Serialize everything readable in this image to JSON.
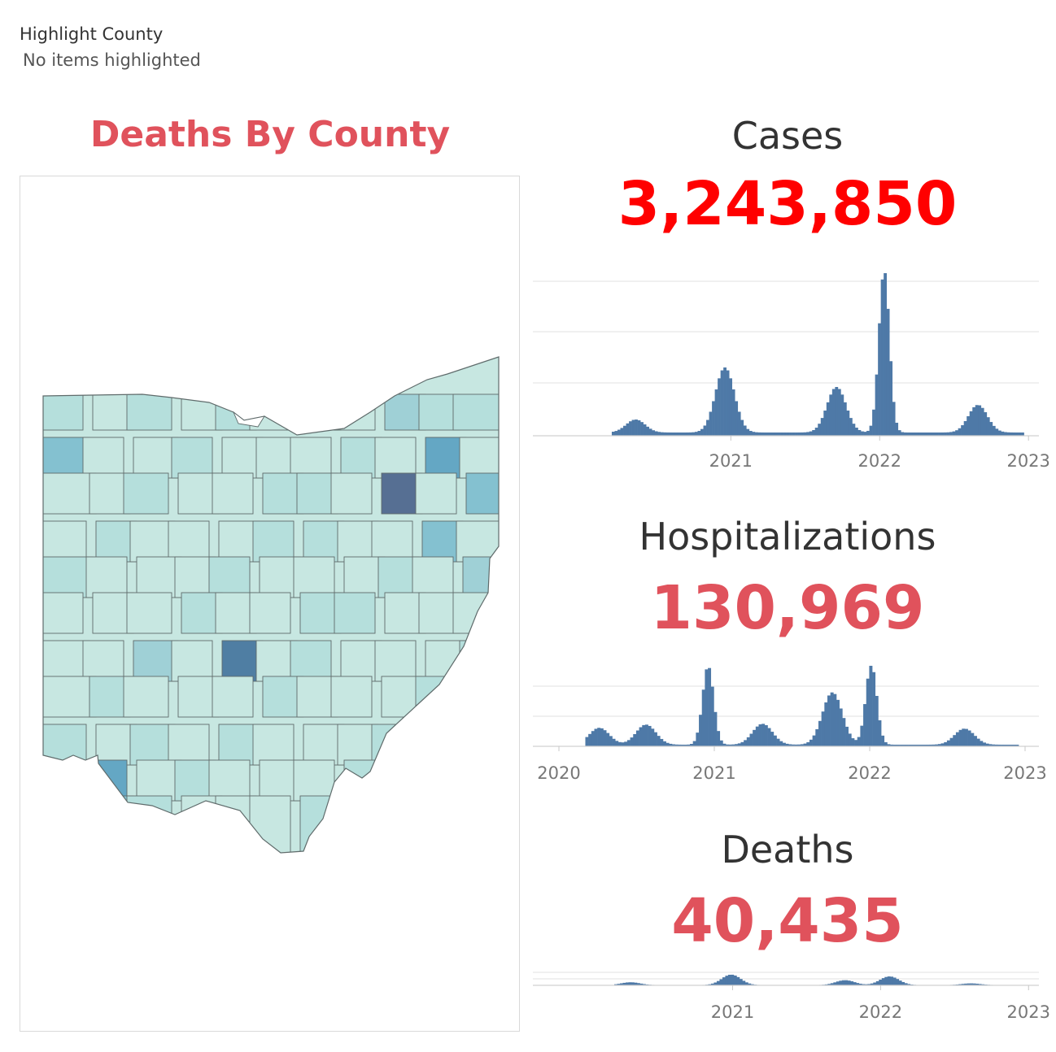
{
  "filter": {
    "title": "Highlight County",
    "value": "No items highlighted"
  },
  "map": {
    "title": "Deaths By County",
    "title_color": "#e0525c",
    "palette": [
      "#c7e7e1",
      "#b5dfdc",
      "#9fd0d6",
      "#84c1d0",
      "#64a7c4",
      "#4f7ea3",
      "#566f93"
    ]
  },
  "kpis": [
    {
      "key": "cases",
      "title": "Cases",
      "value": "3,243,850",
      "value_color": "#ff0000",
      "x_ticks": [
        "2021",
        "2022",
        "2023"
      ]
    },
    {
      "key": "hospitalizations",
      "title": "Hospitalizations",
      "value": "130,969",
      "value_color": "#e0525c",
      "x_ticks": [
        "2020",
        "2021",
        "2022",
        "2023"
      ]
    },
    {
      "key": "deaths",
      "title": "Deaths",
      "value": "40,435",
      "value_color": "#e0525c",
      "x_ticks": [
        "2021",
        "2022",
        "2023"
      ]
    }
  ],
  "chart_data": [
    {
      "type": "bar",
      "series_key": "cases",
      "bar_color": "#4e79a7",
      "x_range": [
        "2020-01",
        "2023-01"
      ],
      "peaks": [
        {
          "x": 2020.35,
          "y": 0.08
        },
        {
          "x": 2020.95,
          "y": 0.4
        },
        {
          "x": 2021.7,
          "y": 0.28
        },
        {
          "x": 2022.02,
          "y": 1.0
        },
        {
          "x": 2022.65,
          "y": 0.17
        }
      ],
      "ylim": [
        0,
        1.05
      ]
    },
    {
      "type": "bar",
      "series_key": "hospitalizations",
      "bar_color": "#4e79a7",
      "x_range": [
        "2020-01",
        "2023-01"
      ],
      "peaks": [
        {
          "x": 2020.25,
          "y": 0.21
        },
        {
          "x": 2020.55,
          "y": 0.25
        },
        {
          "x": 2020.95,
          "y": 0.98
        },
        {
          "x": 2021.3,
          "y": 0.26
        },
        {
          "x": 2021.75,
          "y": 0.65
        },
        {
          "x": 2022.0,
          "y": 1.0
        },
        {
          "x": 2022.6,
          "y": 0.2
        }
      ],
      "ylim": [
        0,
        1.05
      ]
    },
    {
      "type": "bar",
      "series_key": "deaths",
      "bar_color": "#4e79a7",
      "x_range": [
        "2020-01",
        "2023-01"
      ],
      "peaks": [
        {
          "x": 2020.3,
          "y": 0.2
        },
        {
          "x": 2020.98,
          "y": 0.75
        },
        {
          "x": 2021.75,
          "y": 0.35
        },
        {
          "x": 2022.05,
          "y": 0.62
        },
        {
          "x": 2022.6,
          "y": 0.12
        }
      ],
      "ylim": [
        0,
        1.05
      ]
    }
  ]
}
